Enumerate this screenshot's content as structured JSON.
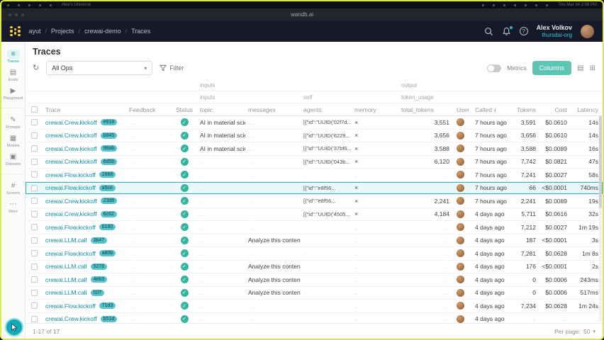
{
  "menubar": {
    "title": "Alex's Universe",
    "clock": "Thu Mar 24 2:08 PM"
  },
  "browser": {
    "url": "wandb.ai"
  },
  "nav": {
    "breadcrumb": [
      "ayut",
      "Projects",
      "crewai-demo",
      "Traces"
    ],
    "user_name": "Alex Volkov",
    "user_org": "thursdai-org"
  },
  "sidebar": {
    "groups": [
      [
        {
          "label": "Traces",
          "glyph": "≡",
          "active": true
        },
        {
          "label": "Evals",
          "glyph": "▤",
          "active": false
        },
        {
          "label": "Playground",
          "glyph": "▶",
          "active": false
        }
      ],
      [
        {
          "label": "Prompts",
          "glyph": "✎",
          "active": false
        },
        {
          "label": "Models",
          "glyph": "▦",
          "active": false
        },
        {
          "label": "Datasets",
          "glyph": "▣",
          "active": false
        }
      ],
      [
        {
          "label": "Scorers",
          "glyph": "#",
          "active": false
        },
        {
          "label": "More",
          "glyph": "⋯",
          "active": false
        }
      ]
    ]
  },
  "main": {
    "title": "Traces"
  },
  "toolbar": {
    "ops": "All Ops",
    "filter": "Filter",
    "metrics": "Metrics",
    "columns": "Columns"
  },
  "table": {
    "group1_inputs": "inputs",
    "group1_output": "output",
    "group2_inputs": "inputs",
    "group2_self": "self",
    "group2_token_usage": "token_usage",
    "columns": [
      "Trace",
      "Feedback",
      "Status",
      "topic",
      "messages",
      "agents",
      "memory",
      "total_tokens",
      "User",
      "Called",
      "Tokens",
      "Cost",
      "Latency"
    ],
    "sort_column": "Called",
    "rows": [
      {
        "trace": "crewai.Crew.kickoff",
        "id": "e918",
        "feedback": "",
        "topic": "AI in material science",
        "messages": "",
        "agents": "[{\"id\":\"UUID('02f7d...",
        "memory": "x",
        "total_tokens": "3,551",
        "called": "7 hours ago",
        "tokens": "3,591",
        "cost": "$0.0610",
        "latency": "14s",
        "highlight": false
      },
      {
        "trace": "crewai.Crew.kickoff",
        "id": "b845",
        "feedback": "",
        "topic": "AI in material science",
        "messages": "",
        "agents": "[{\"id\":\"UUID('6229...",
        "memory": "x",
        "total_tokens": "3,656",
        "called": "7 hours ago",
        "tokens": "3,656",
        "cost": "$0.0610",
        "latency": "14s",
        "highlight": false
      },
      {
        "trace": "crewai.Crew.kickoff",
        "id": "98ab",
        "feedback": "",
        "topic": "AI in material science",
        "messages": "",
        "agents": "[{\"id\":\"UUID('37bf6...",
        "memory": "x",
        "total_tokens": "3,588",
        "called": "7 hours ago",
        "tokens": "3,588",
        "cost": "$0.0089",
        "latency": "16s",
        "highlight": false
      },
      {
        "trace": "crewai.Crew.kickoff",
        "id": "6d5b",
        "feedback": "",
        "topic": "",
        "messages": "",
        "agents": "[{\"id\":\"UUID('043b...",
        "memory": "x",
        "total_tokens": "6,120",
        "called": "7 hours ago",
        "tokens": "7,742",
        "cost": "$0.0821",
        "latency": "47s",
        "highlight": false
      },
      {
        "trace": "crewai.Flow.kickoff",
        "id": "2868",
        "feedback": "",
        "topic": "",
        "messages": "",
        "agents": "",
        "memory": "",
        "total_tokens": "",
        "called": "7 hours ago",
        "tokens": "7,241",
        "cost": "$0.0027",
        "latency": "58s",
        "highlight": false
      },
      {
        "trace": "crewai.Flow.kickoff",
        "id": "a5ce",
        "feedback": "",
        "topic": "",
        "messages": "",
        "agents": "[{\"id\":\"e8f56...",
        "memory": "x",
        "total_tokens": "",
        "called": "7 hours ago",
        "tokens": "66",
        "cost": "<$0.0001",
        "latency": "740ms",
        "highlight": true
      },
      {
        "trace": "crewai.Crew.kickoff",
        "id": "23d8",
        "feedback": "",
        "topic": "",
        "messages": "",
        "agents": "[{\"id\":\"e8f56...",
        "memory": "x",
        "total_tokens": "2,241",
        "called": "7 hours ago",
        "tokens": "2,241",
        "cost": "$0.0089",
        "latency": "19s",
        "highlight": false
      },
      {
        "trace": "crewai.Crew.kickoff",
        "id": "6c62",
        "feedback": "",
        "topic": "",
        "messages": "",
        "agents": "[{\"id\":\"UUID('4505...",
        "memory": "x",
        "total_tokens": "4,184",
        "called": "4 days ago",
        "tokens": "5,711",
        "cost": "$0.0616",
        "latency": "32s",
        "highlight": false
      },
      {
        "trace": "crewai.Flow.kickoff",
        "id": "6160",
        "feedback": "",
        "topic": "",
        "messages": "",
        "agents": "",
        "memory": "",
        "total_tokens": "",
        "called": "4 days ago",
        "tokens": "7,212",
        "cost": "$0.0027",
        "latency": "1m 19s",
        "highlight": false
      },
      {
        "trace": "crewai.LLM.call",
        "id": "3b47",
        "feedback": "",
        "topic": "",
        "messages": "Analyze this conten...",
        "agents": "",
        "memory": "",
        "total_tokens": "",
        "called": "4 days ago",
        "tokens": "187",
        "cost": "<$0.0001",
        "latency": "3s",
        "highlight": false
      },
      {
        "trace": "crewai.Flow.kickoff",
        "id": "a80b",
        "feedback": "",
        "topic": "",
        "messages": "",
        "agents": "",
        "memory": "",
        "total_tokens": "",
        "called": "4 days ago",
        "tokens": "7,281",
        "cost": "$0.0628",
        "latency": "1m 8s",
        "highlight": false
      },
      {
        "trace": "crewai.LLM.call",
        "id": "5276",
        "feedback": "",
        "topic": "",
        "messages": "Analyze this conten...",
        "agents": "",
        "memory": "",
        "total_tokens": "",
        "called": "4 days ago",
        "tokens": "176",
        "cost": "<$0.0001",
        "latency": "2s",
        "highlight": false
      },
      {
        "trace": "crewai.LLM.call",
        "id": "4eb3",
        "feedback": "",
        "topic": "",
        "messages": "Analyze this conten...",
        "agents": "",
        "memory": "",
        "total_tokens": "",
        "called": "4 days ago",
        "tokens": "0",
        "cost": "$0.0006",
        "latency": "243ms",
        "highlight": false
      },
      {
        "trace": "crewai.LLM.call",
        "id": "f1f7",
        "feedback": "",
        "topic": "",
        "messages": "Analyze this conten...",
        "agents": "",
        "memory": "",
        "total_tokens": "",
        "called": "4 days ago",
        "tokens": "0",
        "cost": "$0.0006",
        "latency": "517ms",
        "highlight": false
      },
      {
        "trace": "crewai.Flow.kickoff",
        "id": "71d3",
        "feedback": "",
        "topic": "",
        "messages": "",
        "agents": "",
        "memory": "",
        "total_tokens": "",
        "called": "4 days ago",
        "tokens": "7,234",
        "cost": "$0.0628",
        "latency": "1m 24s",
        "highlight": false
      },
      {
        "trace": "crewai.Crew.kickoff",
        "id": "b51d",
        "feedback": "",
        "topic": "",
        "messages": "",
        "agents": "",
        "memory": "",
        "total_tokens": "",
        "called": "4 days ago",
        "tokens": "",
        "cost": "",
        "latency": "",
        "highlight": false
      }
    ]
  },
  "footer": {
    "range": "1-17 of 17",
    "per_page_label": "Per page:",
    "per_page": "50"
  },
  "colors": {
    "accent_teal": "#13a9ba",
    "logo_yellow": "#ffcc33",
    "button_green": "#5cc6b2",
    "frame_border": "#dde74e"
  }
}
